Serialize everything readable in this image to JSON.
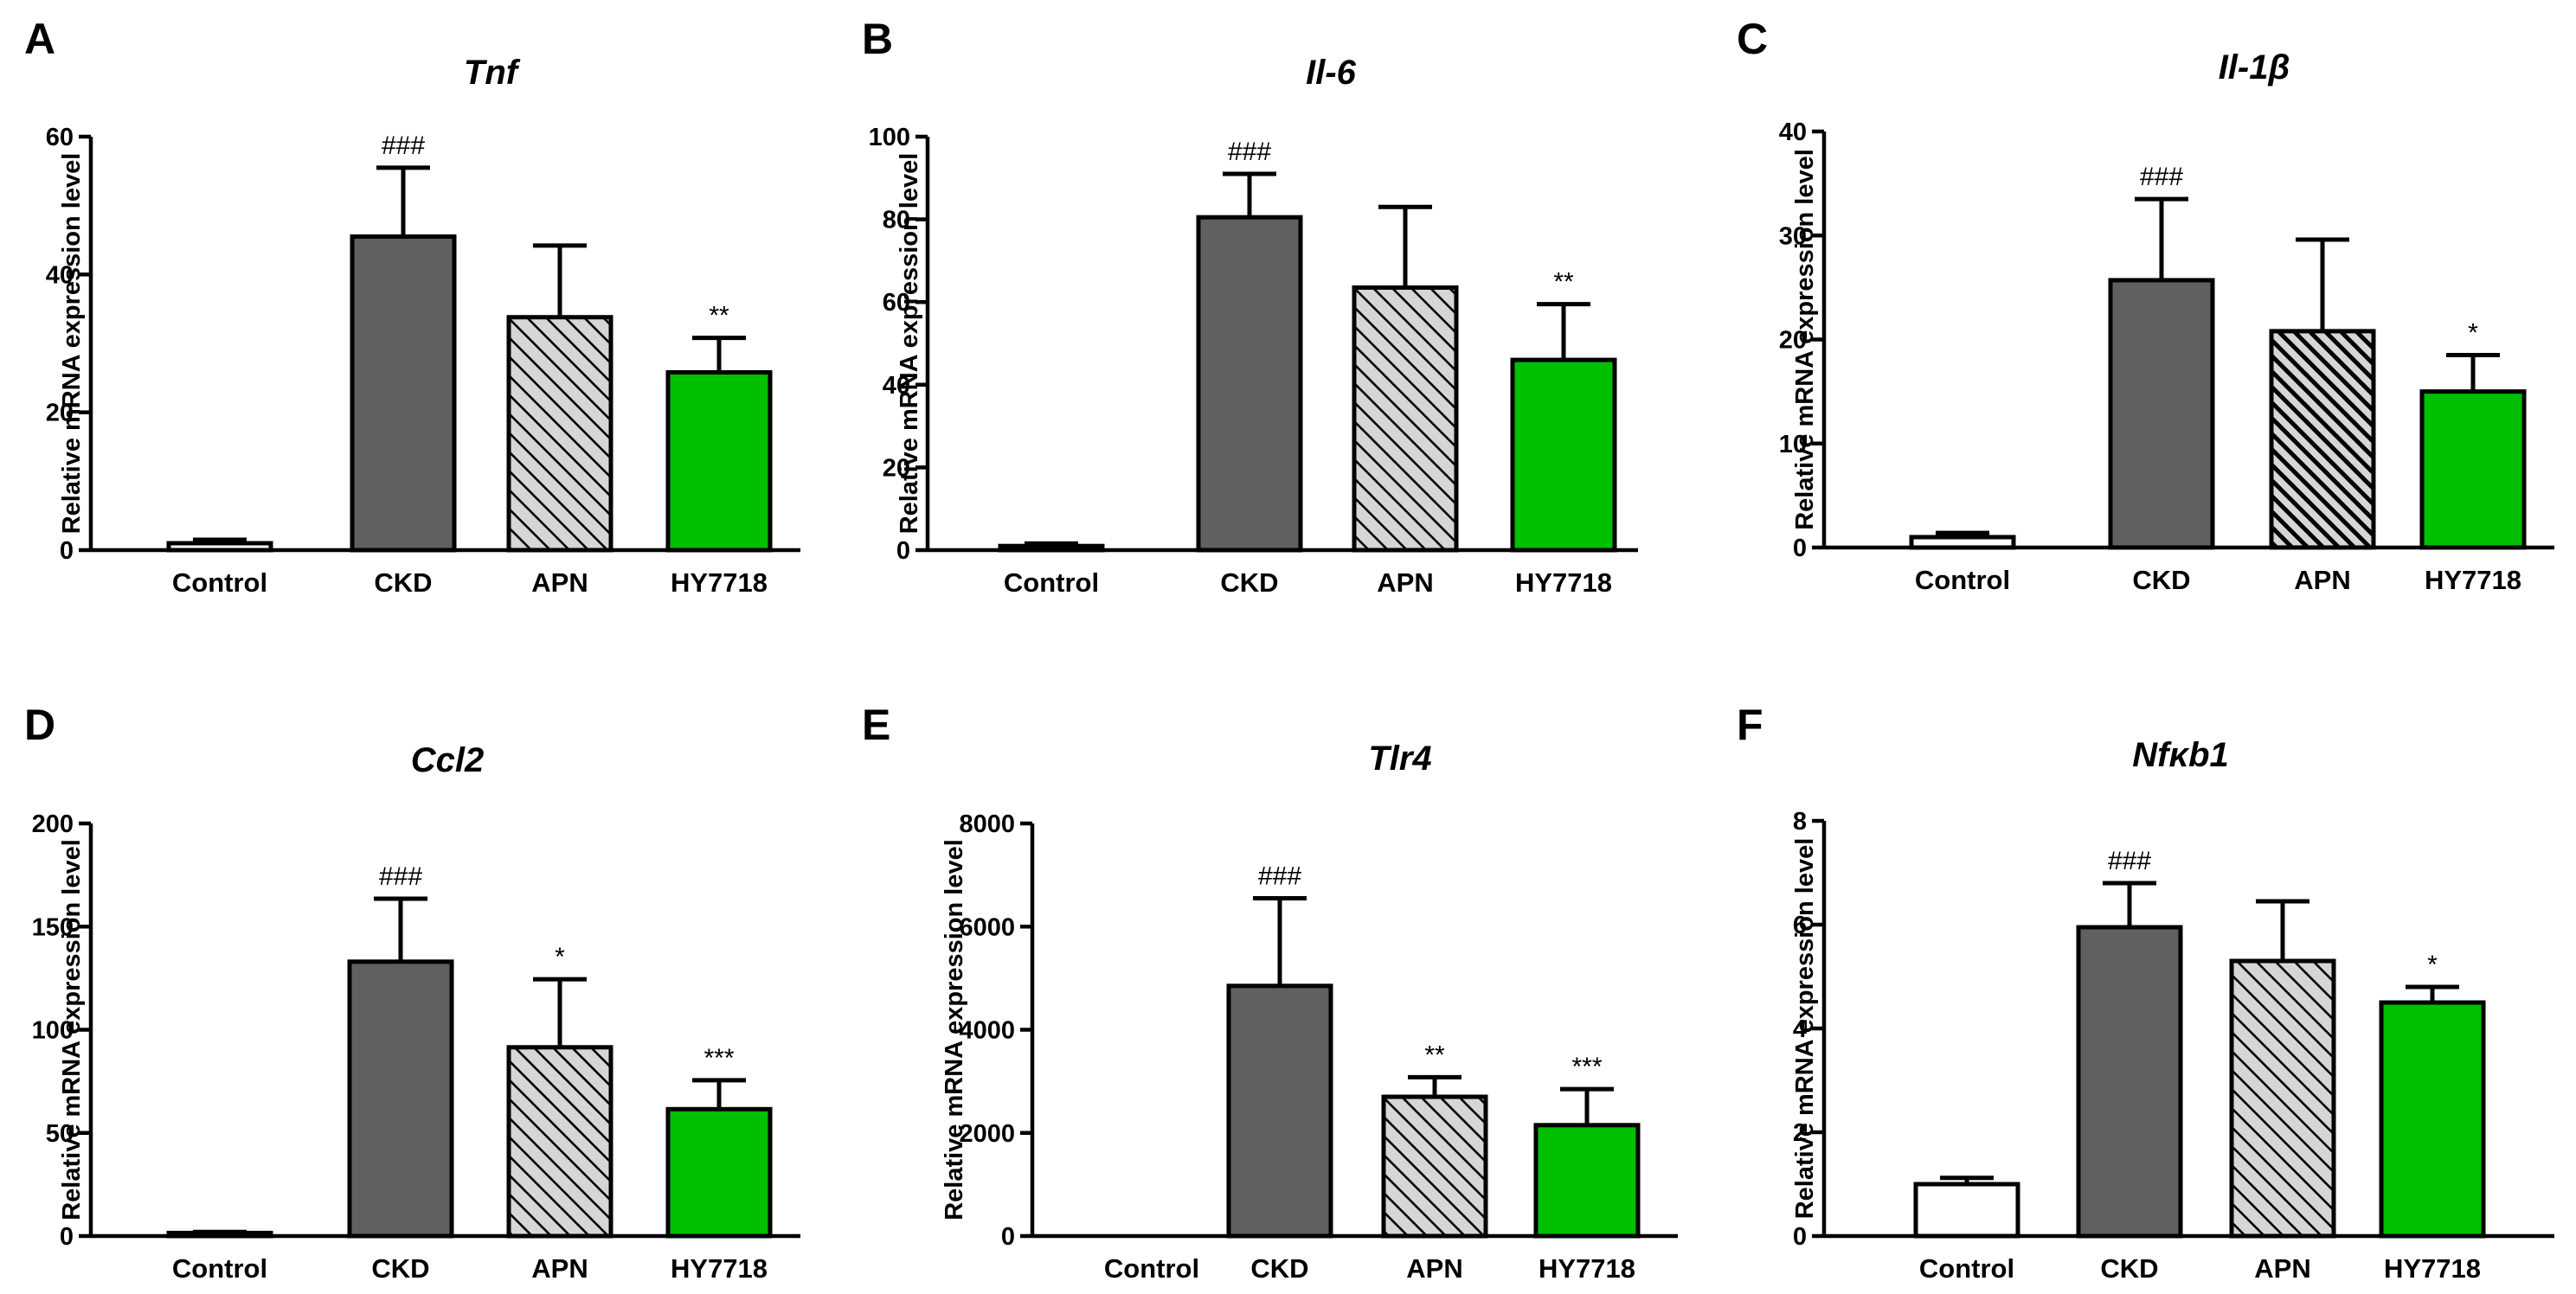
{
  "figure": {
    "bar_colors": {
      "Control": "#ffffff",
      "CKD": "#606060",
      "APN": "#d6d6d6",
      "HY7718": "#00c000"
    },
    "hatch_color": "#000000"
  },
  "chart_data": [
    {
      "type": "bar",
      "panel": "A",
      "title": "Tnf",
      "xlabel": "",
      "ylabel": "Relative mRNA expression level",
      "ylim": [
        0,
        60
      ],
      "yticks": [
        "0",
        "20",
        "40",
        "60"
      ],
      "categories": [
        "Control",
        "CKD",
        "APN",
        "HY7718"
      ],
      "values": [
        1,
        45.5,
        33.8,
        25.8
      ],
      "errors": [
        0.5,
        10,
        10.4,
        5
      ],
      "annotations": [
        "",
        "###",
        "",
        "**"
      ],
      "apn_hatch": "light"
    },
    {
      "type": "bar",
      "panel": "B",
      "title": "Il-6",
      "xlabel": "",
      "ylabel": "Relative mRNA expression level",
      "ylim": [
        0,
        100
      ],
      "yticks": [
        "0",
        "20",
        "40",
        "60",
        "80",
        "100"
      ],
      "categories": [
        "Control",
        "CKD",
        "APN",
        "HY7718"
      ],
      "values": [
        1,
        80.5,
        63.5,
        46
      ],
      "errors": [
        0.6,
        10.5,
        19.5,
        13.5
      ],
      "annotations": [
        "",
        "###",
        "",
        "**"
      ],
      "apn_hatch": "light"
    },
    {
      "type": "bar",
      "panel": "C",
      "title": "Il-1β",
      "xlabel": "",
      "ylabel": "Relative mRNA expression level",
      "ylim": [
        0,
        40
      ],
      "yticks": [
        "0",
        "10",
        "20",
        "30",
        "40"
      ],
      "categories": [
        "Control",
        "CKD",
        "APN",
        "HY7718"
      ],
      "values": [
        1,
        25.7,
        20.8,
        15
      ],
      "errors": [
        0.4,
        7.8,
        8.8,
        3.5
      ],
      "annotations": [
        "",
        "###",
        "",
        "*"
      ],
      "apn_hatch": "dense"
    },
    {
      "type": "bar",
      "panel": "D",
      "title": "Ccl2",
      "xlabel": "",
      "ylabel": "Relative mRNA expression level",
      "ylim": [
        0,
        200
      ],
      "yticks": [
        "0",
        "50",
        "100",
        "150",
        "200"
      ],
      "categories": [
        "Control",
        "CKD",
        "APN",
        "HY7718"
      ],
      "values": [
        1.5,
        133,
        91.5,
        61.5
      ],
      "errors": [
        0.5,
        30.5,
        33,
        14
      ],
      "annotations": [
        "",
        "###",
        "*",
        "***"
      ],
      "apn_hatch": "light"
    },
    {
      "type": "bar",
      "panel": "E",
      "title": "Tlr4",
      "xlabel": "",
      "ylabel": "Relative mRNA expression level",
      "ylim": [
        0,
        8000
      ],
      "yticks": [
        "0",
        "2000",
        "4000",
        "6000",
        "8000"
      ],
      "categories": [
        "Control",
        "CKD",
        "APN",
        "HY7718"
      ],
      "values": [
        1,
        4850,
        2700,
        2150
      ],
      "errors": [
        0,
        1700,
        380,
        700
      ],
      "annotations": [
        "",
        "###",
        "**",
        "***"
      ],
      "apn_hatch": "light"
    },
    {
      "type": "bar",
      "panel": "F",
      "title": "Nfκb1",
      "xlabel": "",
      "ylabel": "Relative mRNA expression level",
      "ylim": [
        0,
        8
      ],
      "yticks": [
        "0",
        "2",
        "4",
        "6",
        "8"
      ],
      "categories": [
        "Control",
        "CKD",
        "APN",
        "HY7718"
      ],
      "values": [
        1,
        5.95,
        5.3,
        4.5
      ],
      "errors": [
        0.12,
        0.85,
        1.15,
        0.3
      ],
      "annotations": [
        "",
        "###",
        "",
        "*"
      ],
      "apn_hatch": "light"
    }
  ]
}
